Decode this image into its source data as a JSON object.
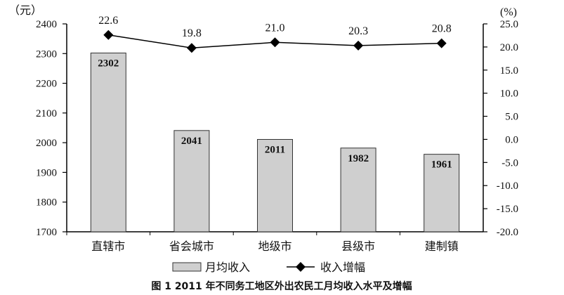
{
  "chart_data": {
    "type": "bar",
    "title": "图 1   2011 年不同务工地区外出农民工月均收入水平及增幅",
    "categories": [
      "直辖市",
      "省会城市",
      "地级市",
      "县级市",
      "建制镇"
    ],
    "y_left": {
      "unit": "（元）",
      "range": [
        1700,
        2400
      ],
      "ticks": [
        1700,
        1800,
        1900,
        2000,
        2100,
        2200,
        2300,
        2400
      ]
    },
    "y_right": {
      "unit": "(%)",
      "range": [
        -20,
        25
      ],
      "ticks": [
        "-20.0",
        "-15.0",
        "-10.0",
        "-5.0",
        "0.0",
        "5.0",
        "10.0",
        "15.0",
        "20.0",
        "25.0"
      ]
    },
    "series": [
      {
        "name": "月均收入",
        "type": "bar",
        "axis": "left",
        "values": [
          2302,
          2041,
          2011,
          1982,
          1961
        ],
        "color": "#cfcfcf"
      },
      {
        "name": "收入增幅",
        "type": "line",
        "axis": "right",
        "values": [
          22.6,
          19.8,
          21.0,
          20.3,
          20.8
        ],
        "labels": [
          "22.6",
          "19.8",
          "21.0",
          "20.3",
          "20.8"
        ],
        "color": "#000000",
        "marker": "diamond"
      }
    ],
    "grid": false,
    "legend": "bottom"
  }
}
